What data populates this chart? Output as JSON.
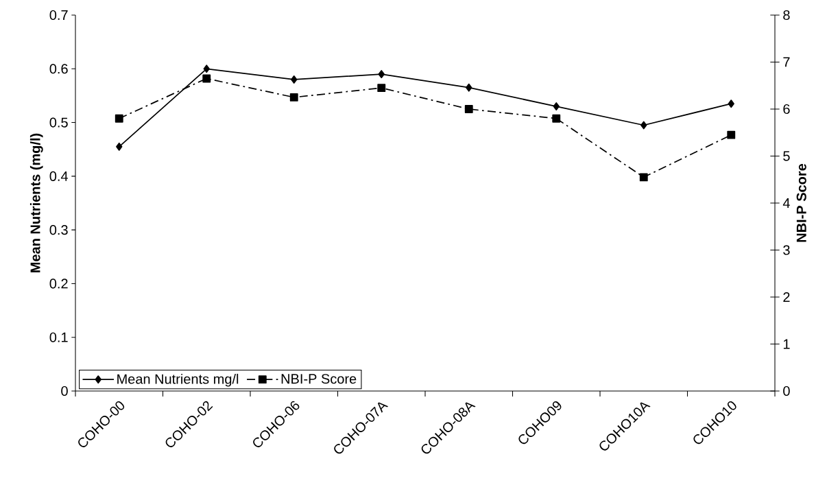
{
  "chart_data": {
    "type": "line",
    "categories": [
      "COHO-00",
      "COHO-02",
      "COHO-06",
      "COHO-07A",
      "COHO-08A",
      "COHO09",
      "COHO10A",
      "COHO10"
    ],
    "ylabel": "Mean Nutrients (mg/l)",
    "y2label": "NBI-P Score",
    "ylim": [
      0,
      0.7
    ],
    "yticks": [
      0,
      0.1,
      0.2,
      0.3,
      0.4,
      0.5,
      0.6,
      0.7
    ],
    "y2lim": [
      0,
      8
    ],
    "y2ticks": [
      0,
      1,
      2,
      3,
      4,
      5,
      6,
      7,
      8
    ],
    "legend": "bottom left",
    "grid": false,
    "series": [
      {
        "name": "Mean Nutrients mg/l",
        "color": "#000000",
        "marker": "diamond",
        "line_style": "solid",
        "values": [
          0.455,
          0.6,
          0.58,
          0.59,
          0.565,
          0.53,
          0.495,
          0.535
        ]
      },
      {
        "name": "NBI-P Score",
        "color": "#000000",
        "marker": "square",
        "line_style": "dashdot",
        "axis": "y2",
        "values": [
          5.8,
          6.65,
          6.25,
          6.45,
          6.0,
          5.8,
          4.55,
          5.45
        ]
      }
    ]
  }
}
